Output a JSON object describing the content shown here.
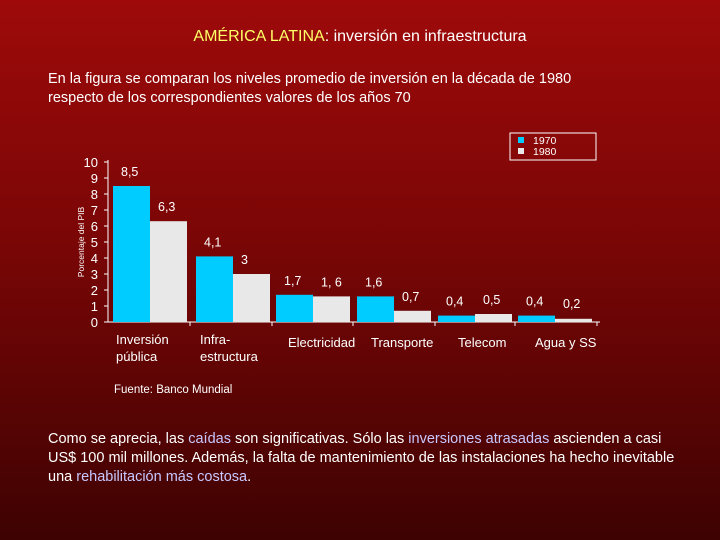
{
  "title": {
    "accent": "AMÉRICA LATINA",
    "rest": ": inversión en infraestructura"
  },
  "intro": {
    "line1": "En la figura se comparan los niveles promedio de inversión en la década de  1980",
    "line2": "respecto de los correspondientes valores de los años 70"
  },
  "source": "Fuente: Banco Mundial",
  "conclusion": {
    "p1": "Como se aprecia,  las ",
    "h1": "caídas",
    "p2": "  son significativas.   Sólo las ",
    "h2": "inversiones atrasadas",
    "p3": " ascienden a casi US$ 100 mil millones.   Además, la falta de mantenimiento de las instalaciones ha hecho inevitable una ",
    "h3": "rehabilitación más costosa",
    "p4": "."
  },
  "colors": {
    "series_1970": "#00ccff",
    "series_1980": "#e8e8e8",
    "highlight_title": "#ffff66",
    "highlight_text": "#c8c8ff"
  },
  "chart_data": {
    "type": "bar",
    "ylabel": "Porcentaje del PIB",
    "ylim": [
      0,
      10
    ],
    "yticks": [
      "0",
      "1",
      "2",
      "3",
      "4",
      "5",
      "6",
      "7",
      "8",
      "9",
      "10"
    ],
    "categories": [
      {
        "line1": "Inversión",
        "line2": "pública"
      },
      {
        "line1": "Infra-",
        "line2": "estructura"
      },
      {
        "line1": "Electricidad",
        "line2": ""
      },
      {
        "line1": "Transporte",
        "line2": ""
      },
      {
        "line1": "Telecom",
        "line2": ""
      },
      {
        "line1": "Agua y SS",
        "line2": ""
      }
    ],
    "series": [
      {
        "name": "1970",
        "values": [
          8.5,
          4.1,
          1.7,
          1.6,
          0.4,
          0.4
        ],
        "labels": [
          "8,5",
          "4,1",
          "1,7",
          "1,6",
          "0,4",
          "0,4"
        ]
      },
      {
        "name": "1980",
        "values": [
          6.3,
          3.0,
          1.6,
          0.7,
          0.5,
          0.2
        ],
        "labels": [
          "6,3",
          "3",
          "1, 6",
          "0,7",
          "0,5",
          "0,2"
        ]
      }
    ],
    "legend_position": "top-right",
    "grid": false
  }
}
